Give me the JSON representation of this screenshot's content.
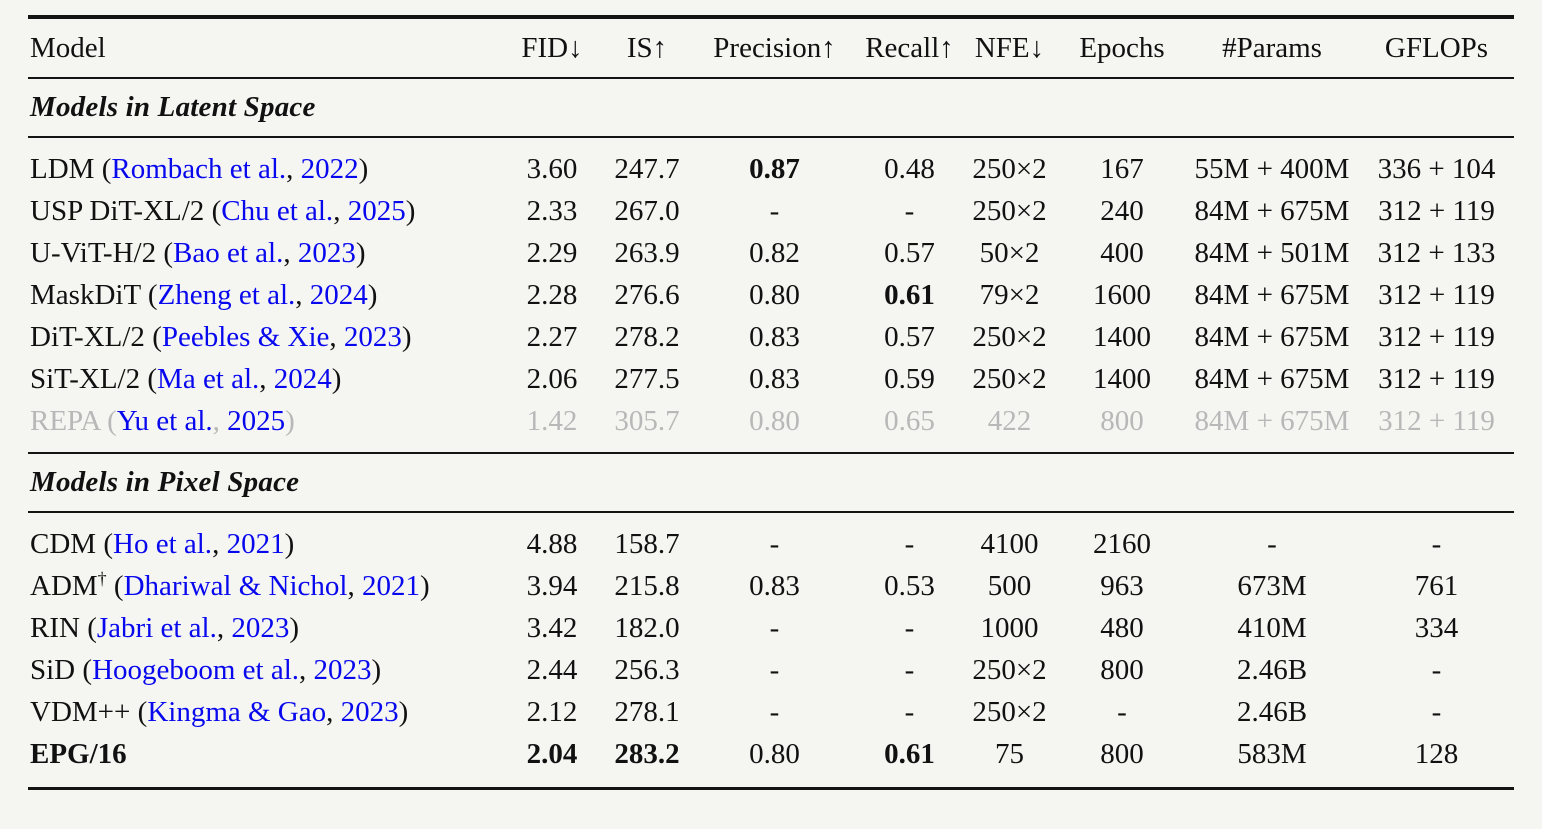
{
  "colors": {
    "background": "#f5f5f2",
    "ink": "#111111",
    "rule": "#141414",
    "link": "#0808ee",
    "muted": "#b8b8b8"
  },
  "table": {
    "columns": [
      "Model",
      "FID↓",
      "IS↑",
      "Precision↑",
      "Recall↑",
      "NFE↓",
      "Epochs",
      "#Params",
      "GFLOPs"
    ],
    "cite": {
      "open": " (",
      "sep": ", ",
      "close": ")"
    },
    "sections": [
      {
        "title": "Models in Latent Space",
        "rows": [
          {
            "model": {
              "name": "LDM",
              "sup": "",
              "cite_authors": "Rombach et al.",
              "cite_year": "2022",
              "bold_name": false
            },
            "muted": false,
            "values": [
              "3.60",
              "247.7",
              "0.87",
              "0.48",
              "250×2",
              "167",
              "55M + 400M",
              "336 + 104"
            ],
            "bold": [
              false,
              false,
              true,
              false,
              false,
              false,
              false,
              false
            ]
          },
          {
            "model": {
              "name": "USP DiT-XL/2",
              "sup": "",
              "cite_authors": "Chu et al.",
              "cite_year": "2025",
              "bold_name": false
            },
            "muted": false,
            "values": [
              "2.33",
              "267.0",
              "-",
              "-",
              "250×2",
              "240",
              "84M + 675M",
              "312 + 119"
            ],
            "bold": [
              false,
              false,
              false,
              false,
              false,
              false,
              false,
              false
            ]
          },
          {
            "model": {
              "name": "U-ViT-H/2",
              "sup": "",
              "cite_authors": "Bao et al.",
              "cite_year": "2023",
              "bold_name": false
            },
            "muted": false,
            "values": [
              "2.29",
              "263.9",
              "0.82",
              "0.57",
              "50×2",
              "400",
              "84M + 501M",
              "312 + 133"
            ],
            "bold": [
              false,
              false,
              false,
              false,
              false,
              false,
              false,
              false
            ]
          },
          {
            "model": {
              "name": "MaskDiT",
              "sup": "",
              "cite_authors": "Zheng et al.",
              "cite_year": "2024",
              "bold_name": false
            },
            "muted": false,
            "values": [
              "2.28",
              "276.6",
              "0.80",
              "0.61",
              "79×2",
              "1600",
              "84M + 675M",
              "312 + 119"
            ],
            "bold": [
              false,
              false,
              false,
              true,
              false,
              false,
              false,
              false
            ]
          },
          {
            "model": {
              "name": "DiT-XL/2",
              "sup": "",
              "cite_authors": "Peebles & Xie",
              "cite_year": "2023",
              "bold_name": false
            },
            "muted": false,
            "values": [
              "2.27",
              "278.2",
              "0.83",
              "0.57",
              "250×2",
              "1400",
              "84M + 675M",
              "312 + 119"
            ],
            "bold": [
              false,
              false,
              false,
              false,
              false,
              false,
              false,
              false
            ]
          },
          {
            "model": {
              "name": "SiT-XL/2",
              "sup": "",
              "cite_authors": "Ma et al.",
              "cite_year": "2024",
              "bold_name": false
            },
            "muted": false,
            "values": [
              "2.06",
              "277.5",
              "0.83",
              "0.59",
              "250×2",
              "1400",
              "84M + 675M",
              "312 + 119"
            ],
            "bold": [
              false,
              false,
              false,
              false,
              false,
              false,
              false,
              false
            ]
          },
          {
            "model": {
              "name": "REPA",
              "sup": "",
              "cite_authors": "Yu et al.",
              "cite_year": "2025",
              "bold_name": false
            },
            "muted": true,
            "values": [
              "1.42",
              "305.7",
              "0.80",
              "0.65",
              "422",
              "800",
              "84M + 675M",
              "312 + 119"
            ],
            "bold": [
              false,
              false,
              false,
              false,
              false,
              false,
              false,
              false
            ]
          }
        ]
      },
      {
        "title": "Models in Pixel Space",
        "rows": [
          {
            "model": {
              "name": "CDM",
              "sup": "",
              "cite_authors": "Ho et al.",
              "cite_year": "2021",
              "bold_name": false
            },
            "muted": false,
            "values": [
              "4.88",
              "158.7",
              "-",
              "-",
              "4100",
              "2160",
              "-",
              "-"
            ],
            "bold": [
              false,
              false,
              false,
              false,
              false,
              false,
              false,
              false
            ]
          },
          {
            "model": {
              "name": "ADM",
              "sup": "†",
              "cite_authors": "Dhariwal & Nichol",
              "cite_year": "2021",
              "bold_name": false
            },
            "muted": false,
            "values": [
              "3.94",
              "215.8",
              "0.83",
              "0.53",
              "500",
              "963",
              "673M",
              "761"
            ],
            "bold": [
              false,
              false,
              false,
              false,
              false,
              false,
              false,
              false
            ]
          },
          {
            "model": {
              "name": "RIN",
              "sup": "",
              "cite_authors": "Jabri et al.",
              "cite_year": "2023",
              "bold_name": false
            },
            "muted": false,
            "values": [
              "3.42",
              "182.0",
              "-",
              "-",
              "1000",
              "480",
              "410M",
              "334"
            ],
            "bold": [
              false,
              false,
              false,
              false,
              false,
              false,
              false,
              false
            ]
          },
          {
            "model": {
              "name": "SiD",
              "sup": "",
              "cite_authors": "Hoogeboom et al.",
              "cite_year": "2023",
              "bold_name": false
            },
            "muted": false,
            "values": [
              "2.44",
              "256.3",
              "-",
              "-",
              "250×2",
              "800",
              "2.46B",
              "-"
            ],
            "bold": [
              false,
              false,
              false,
              false,
              false,
              false,
              false,
              false
            ]
          },
          {
            "model": {
              "name": "VDM++",
              "sup": "",
              "cite_authors": "Kingma & Gao",
              "cite_year": "2023",
              "bold_name": false
            },
            "muted": false,
            "values": [
              "2.12",
              "278.1",
              "-",
              "-",
              "250×2",
              "-",
              "2.46B",
              "-"
            ],
            "bold": [
              false,
              false,
              false,
              false,
              false,
              false,
              false,
              false
            ]
          },
          {
            "model": {
              "name": "EPG/16",
              "sup": "",
              "cite_authors": "",
              "cite_year": "",
              "bold_name": true
            },
            "muted": false,
            "values": [
              "2.04",
              "283.2",
              "0.80",
              "0.61",
              "75",
              "800",
              "583M",
              "128"
            ],
            "bold": [
              true,
              true,
              false,
              true,
              false,
              false,
              false,
              false
            ]
          }
        ]
      }
    ]
  }
}
